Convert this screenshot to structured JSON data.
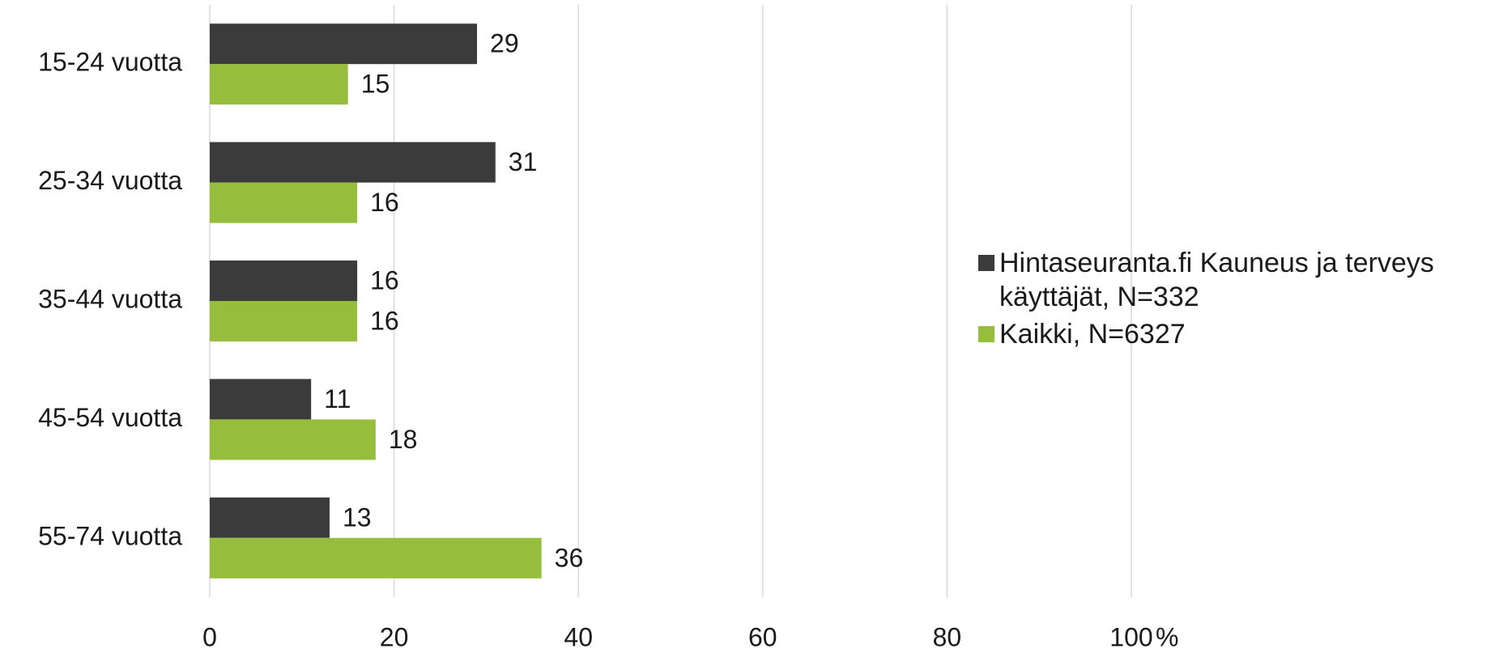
{
  "chart_data": {
    "type": "hbar",
    "categories": [
      "15-24 vuotta",
      "25-34 vuotta",
      "35-44 vuotta",
      "45-54 vuotta",
      "55-74 vuotta"
    ],
    "series": [
      {
        "name": "Hintaseuranta.fi Kauneus ja terveys käyttäjät, N=332",
        "color": "#3b3b3b",
        "values": [
          29,
          31,
          16,
          11,
          13
        ]
      },
      {
        "name": "Kaikki, N=6327",
        "color": "#97bd3d",
        "values": [
          15,
          16,
          16,
          18,
          36
        ]
      }
    ],
    "xlabel": "%",
    "xlim": [
      0,
      100
    ],
    "xticks": [
      0,
      20,
      40,
      60,
      80,
      100
    ],
    "grid": true
  }
}
